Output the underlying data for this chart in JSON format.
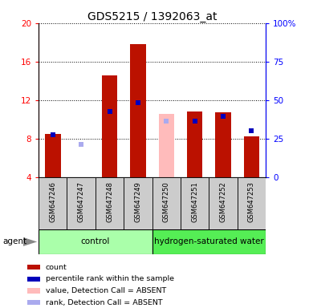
{
  "title": "GDS5215 / 1392063_at",
  "samples": [
    "GSM647246",
    "GSM647247",
    "GSM647248",
    "GSM647249",
    "GSM647250",
    "GSM647251",
    "GSM647252",
    "GSM647253"
  ],
  "red_values": [
    8.5,
    3.9,
    14.6,
    17.8,
    null,
    10.8,
    10.7,
    8.2
  ],
  "red_absent_values": [
    null,
    null,
    null,
    null,
    10.6,
    null,
    null,
    null
  ],
  "blue_values": [
    8.4,
    null,
    10.8,
    11.7,
    null,
    9.8,
    10.3,
    8.8
  ],
  "blue_absent_values": [
    null,
    7.4,
    null,
    null,
    9.8,
    null,
    null,
    null
  ],
  "ylim_left": [
    4,
    20
  ],
  "ylim_right": [
    0,
    100
  ],
  "yticks_left": [
    4,
    8,
    12,
    16,
    20
  ],
  "yticks_right": [
    0,
    25,
    50,
    75,
    100
  ],
  "ytick_labels_left": [
    "4",
    "8",
    "12",
    "16",
    "20"
  ],
  "ytick_labels_right": [
    "0",
    "25",
    "50",
    "75",
    "100%"
  ],
  "groups": [
    {
      "label": "control",
      "start": 0,
      "end": 3,
      "color": "#aaffaa"
    },
    {
      "label": "hydrogen-saturated water",
      "start": 4,
      "end": 7,
      "color": "#55ee55"
    }
  ],
  "bar_color_red": "#bb1100",
  "bar_color_red_absent": "#ffbbbb",
  "marker_color_blue": "#0000bb",
  "marker_color_blue_absent": "#aaaaee",
  "bar_width": 0.55,
  "marker_size": 5,
  "legend_items": [
    {
      "label": "count",
      "color": "#bb1100"
    },
    {
      "label": "percentile rank within the sample",
      "color": "#0000bb"
    },
    {
      "label": "value, Detection Call = ABSENT",
      "color": "#ffbbbb"
    },
    {
      "label": "rank, Detection Call = ABSENT",
      "color": "#aaaaee"
    }
  ],
  "agent_label": "agent",
  "title_fontsize": 10,
  "tick_fontsize": 7.5,
  "label_fontsize": 7
}
